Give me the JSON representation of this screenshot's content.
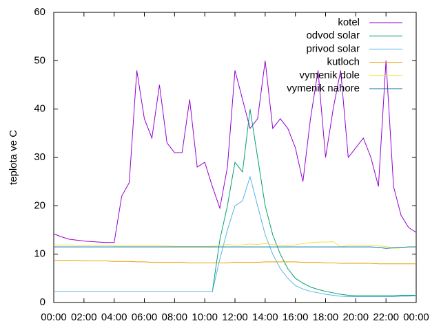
{
  "chart_data": {
    "type": "line",
    "ylabel": "teplota ve C",
    "x": [
      0,
      0.5,
      1,
      1.5,
      2,
      2.5,
      3,
      3.5,
      4,
      4.5,
      5,
      5.5,
      6,
      6.5,
      7,
      7.5,
      8,
      8.5,
      9,
      9.5,
      10,
      10.5,
      11,
      11.5,
      12,
      12.5,
      13,
      13.5,
      14,
      14.5,
      15,
      15.5,
      16,
      16.5,
      17,
      17.5,
      18,
      18.5,
      19,
      19.5,
      20,
      20.5,
      21,
      21.5,
      22,
      22.5,
      23,
      23.5,
      24
    ],
    "series": [
      {
        "name": "kotel",
        "color": "#9400d3",
        "values": [
          14.2,
          13.6,
          13.1,
          12.9,
          12.7,
          12.6,
          12.5,
          12.4,
          12.4,
          22,
          24.8,
          48,
          38,
          34,
          45,
          33,
          31,
          31,
          42,
          28,
          29,
          24,
          19.5,
          28,
          48,
          42,
          36,
          38,
          50,
          36,
          38,
          36,
          32,
          25,
          38,
          48,
          30,
          40,
          48,
          30,
          32,
          34,
          30,
          24,
          50,
          24,
          18,
          15.5,
          14.5
        ]
      },
      {
        "name": "odvod solar",
        "color": "#009e73",
        "values": [
          2.2,
          2.2,
          2.2,
          2.2,
          2.2,
          2.2,
          2.2,
          2.2,
          2.2,
          2.2,
          2.2,
          2.2,
          2.2,
          2.2,
          2.2,
          2.2,
          2.2,
          2.2,
          2.2,
          2.2,
          2.2,
          2.2,
          13,
          20,
          29,
          27,
          40,
          30,
          20,
          14,
          10,
          7,
          5,
          4,
          3.2,
          2.7,
          2.3,
          2,
          1.7,
          1.5,
          1.4,
          1.4,
          1.4,
          1.4,
          1.4,
          1.4,
          1.5,
          1.5,
          1.5
        ]
      },
      {
        "name": "privod solar",
        "color": "#56b4e9",
        "values": [
          2.2,
          2.2,
          2.2,
          2.2,
          2.2,
          2.2,
          2.2,
          2.2,
          2.2,
          2.2,
          2.2,
          2.2,
          2.2,
          2.2,
          2.2,
          2.2,
          2.2,
          2.2,
          2.2,
          2.2,
          2.2,
          2.2,
          9,
          15,
          20,
          21,
          26,
          20,
          14,
          10,
          7,
          5,
          3.5,
          2.8,
          2.3,
          2,
          1.7,
          1.5,
          1.3,
          1.2,
          1.2,
          1.2,
          1.2,
          1.2,
          1.2,
          1.2,
          1.3,
          1.3,
          1.4
        ]
      },
      {
        "name": "kutloch",
        "color": "#e69f00",
        "values": [
          8.7,
          8.7,
          8.7,
          8.7,
          8.6,
          8.6,
          8.6,
          8.6,
          8.5,
          8.5,
          8.5,
          8.4,
          8.4,
          8.3,
          8.3,
          8.3,
          8.3,
          8.3,
          8.2,
          8.2,
          8.2,
          8.2,
          8.2,
          8.2,
          8.3,
          8.3,
          8.3,
          8.3,
          8.4,
          8.4,
          8.4,
          8.4,
          8.4,
          8.3,
          8.3,
          8.3,
          8.2,
          8.2,
          8.1,
          8.1,
          8.1,
          8.1,
          8.1,
          8.0,
          8.0,
          8.0,
          8.0,
          8.0,
          8.0
        ]
      },
      {
        "name": "vymenik dole",
        "color": "#f0e442",
        "values": [
          11.9,
          11.9,
          11.9,
          11.8,
          11.8,
          11.8,
          11.8,
          11.8,
          11.7,
          11.7,
          11.7,
          11.7,
          11.7,
          11.7,
          11.7,
          11.7,
          11.6,
          11.6,
          11.6,
          11.6,
          11.6,
          11.6,
          11.8,
          12.0,
          11.8,
          11.9,
          12.1,
          12.0,
          12.2,
          12.0,
          11.8,
          11.7,
          11.9,
          12.2,
          12.4,
          12.5,
          12.5,
          12.6,
          11.5,
          11.8,
          11.8,
          11.8,
          11.8,
          11.7,
          11.6,
          11.2,
          11.3,
          11.5,
          11.5
        ]
      },
      {
        "name": "vymenik nahore",
        "color": "#0072b2",
        "values": [
          11.5,
          11.5,
          11.5,
          11.5,
          11.5,
          11.5,
          11.5,
          11.5,
          11.5,
          11.5,
          11.5,
          11.5,
          11.5,
          11.5,
          11.5,
          11.5,
          11.5,
          11.5,
          11.5,
          11.5,
          11.5,
          11.5,
          11.5,
          11.5,
          11.5,
          11.5,
          11.5,
          11.5,
          11.5,
          11.5,
          11.5,
          11.5,
          11.5,
          11.5,
          11.5,
          11.5,
          11.5,
          11.5,
          11.5,
          11.5,
          11.5,
          11.5,
          11.5,
          11.4,
          11.2,
          11.3,
          11.4,
          11.5,
          11.5
        ]
      }
    ],
    "xlim": [
      0,
      24
    ],
    "xticks": [
      {
        "value": 0,
        "label": "00:00"
      },
      {
        "value": 2,
        "label": "02:00"
      },
      {
        "value": 4,
        "label": "04:00"
      },
      {
        "value": 6,
        "label": "06:00"
      },
      {
        "value": 8,
        "label": "08:00"
      },
      {
        "value": 10,
        "label": "10:00"
      },
      {
        "value": 12,
        "label": "12:00"
      },
      {
        "value": 14,
        "label": "14:00"
      },
      {
        "value": 16,
        "label": "16:00"
      },
      {
        "value": 18,
        "label": "18:00"
      },
      {
        "value": 20,
        "label": "20:00"
      },
      {
        "value": 22,
        "label": "22:00"
      },
      {
        "value": 24,
        "label": "00:00"
      }
    ],
    "ylim": [
      0,
      60
    ],
    "yticks": [
      0,
      10,
      20,
      30,
      40,
      50,
      60
    ],
    "legend": "top-right"
  }
}
